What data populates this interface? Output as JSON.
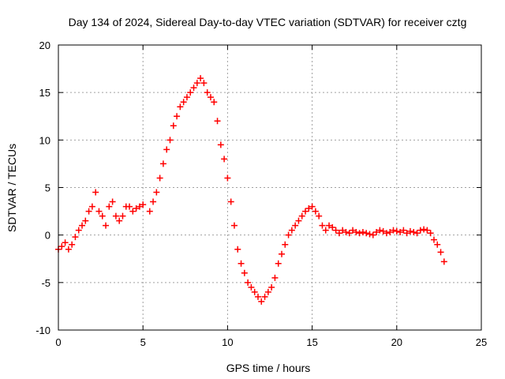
{
  "chart_data": {
    "type": "scatter",
    "title": "Day 134 of 2024, Sidereal Day-to-day VTEC variation (SDTVAR) for receiver cztg",
    "xlabel": "GPS time / hours",
    "ylabel": "SDTVAR / TECUs",
    "xlim": [
      0,
      25
    ],
    "ylim": [
      -10,
      20
    ],
    "xticks": [
      0,
      5,
      10,
      15,
      20,
      25
    ],
    "yticks": [
      -10,
      -5,
      0,
      5,
      10,
      15,
      20
    ],
    "xtick_labels": [
      "0",
      "5",
      "10",
      "15",
      "20",
      "25"
    ],
    "ytick_labels": [
      "-10",
      "-5",
      "0",
      "5",
      "10",
      "15",
      "20"
    ],
    "grid": true,
    "marker": "plus",
    "series": [
      {
        "name": "SDTVAR",
        "color": "#ff0000",
        "x": [
          0.0,
          0.2,
          0.4,
          0.6,
          0.8,
          1.0,
          1.2,
          1.4,
          1.6,
          1.8,
          2.0,
          2.2,
          2.4,
          2.6,
          2.8,
          3.0,
          3.2,
          3.4,
          3.6,
          3.8,
          4.0,
          4.2,
          4.4,
          4.6,
          4.8,
          5.0,
          5.2,
          5.4,
          5.6,
          5.8,
          6.0,
          6.2,
          6.4,
          6.6,
          6.8,
          7.0,
          7.2,
          7.4,
          7.6,
          7.8,
          8.0,
          8.2,
          8.4,
          8.6,
          8.8,
          9.0,
          9.2,
          9.4,
          9.6,
          9.8,
          10.0,
          10.2,
          10.4,
          10.6,
          10.8,
          11.0,
          11.2,
          11.4,
          11.6,
          11.8,
          12.0,
          12.2,
          12.4,
          12.6,
          12.8,
          13.0,
          13.2,
          13.4,
          13.6,
          13.8,
          14.0,
          14.2,
          14.4,
          14.6,
          14.8,
          15.0,
          15.2,
          15.4,
          15.6,
          15.8,
          16.0,
          16.2,
          16.4,
          16.6,
          16.8,
          17.0,
          17.2,
          17.4,
          17.6,
          17.8,
          18.0,
          18.2,
          18.4,
          18.6,
          18.8,
          19.0,
          19.2,
          19.4,
          19.6,
          19.8,
          20.0,
          20.2,
          20.4,
          20.6,
          20.8,
          21.0,
          21.2,
          21.4,
          21.6,
          21.8,
          22.0,
          22.2,
          22.4,
          22.6,
          22.8
        ],
        "y": [
          -1.5,
          -1.2,
          -0.8,
          -1.5,
          -1.0,
          -0.2,
          0.5,
          1.0,
          1.5,
          2.5,
          3.0,
          4.5,
          2.5,
          2.0,
          1.0,
          3.0,
          3.5,
          2.0,
          1.5,
          2.0,
          3.0,
          3.0,
          2.5,
          2.8,
          3.0,
          3.2,
          null,
          2.5,
          3.5,
          4.5,
          6.0,
          7.5,
          9.0,
          10.0,
          11.5,
          12.5,
          13.5,
          14.0,
          14.5,
          15.0,
          15.5,
          16.0,
          16.5,
          16.0,
          15.0,
          14.5,
          14.0,
          12.0,
          9.5,
          8.0,
          6.0,
          3.5,
          1.0,
          -1.5,
          -3.0,
          -4.0,
          -5.0,
          -5.5,
          -6.0,
          -6.5,
          -7.0,
          -6.5,
          -6.0,
          -5.5,
          -4.5,
          -3.0,
          -2.0,
          -1.0,
          0.0,
          0.5,
          1.0,
          1.5,
          2.0,
          2.5,
          2.8,
          3.0,
          2.5,
          2.0,
          1.0,
          0.5,
          1.0,
          0.8,
          0.5,
          0.2,
          0.5,
          0.3,
          0.2,
          0.5,
          0.3,
          0.2,
          0.3,
          0.2,
          0.1,
          0.0,
          0.3,
          0.5,
          0.4,
          0.2,
          0.3,
          0.5,
          0.4,
          0.3,
          0.5,
          0.2,
          0.4,
          0.3,
          0.2,
          0.5,
          0.6,
          0.5,
          0.2,
          -0.5,
          -1.0,
          -1.8,
          -2.8
        ]
      }
    ]
  }
}
